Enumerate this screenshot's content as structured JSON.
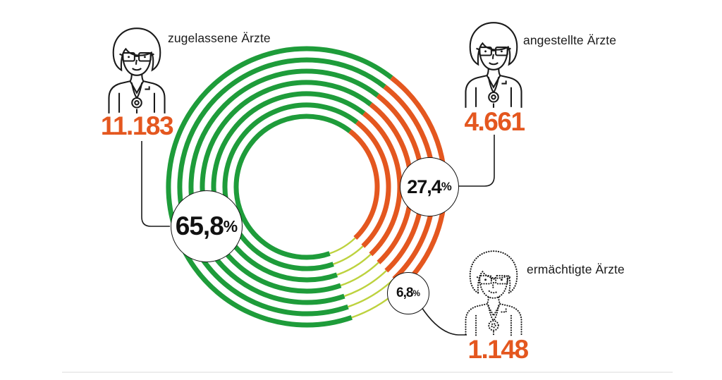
{
  "ui": {
    "percent_symbol": "%",
    "background": "#ffffff",
    "line_color": "#1a1a1a",
    "divider_color": "#ededed",
    "number_color": "#e4571f"
  },
  "chart_data": {
    "type": "pie",
    "style": "concentric-ring-donut",
    "rings": 7,
    "title": "",
    "legend_position": "around",
    "grid": false,
    "segments": [
      {
        "label": "zugelassene Ärzte",
        "count_label": "11.183",
        "value": 11183,
        "pct": 65.8,
        "pct_label": "65,8",
        "color": "#1e9c3a",
        "icon": "female-doctor-solid-outline"
      },
      {
        "label": "angestellte Ärzte",
        "count_label": "4.661",
        "value": 4661,
        "pct": 27.4,
        "pct_label": "27,4",
        "color": "#e4571f",
        "icon": "female-doctor-solid-outline"
      },
      {
        "label": "ermächtigte Ärzte",
        "count_label": "1.148",
        "value": 1148,
        "pct": 6.8,
        "pct_label": "6,8",
        "color": "#bdd23e",
        "icon": "female-doctor-dotted-outline"
      }
    ]
  }
}
